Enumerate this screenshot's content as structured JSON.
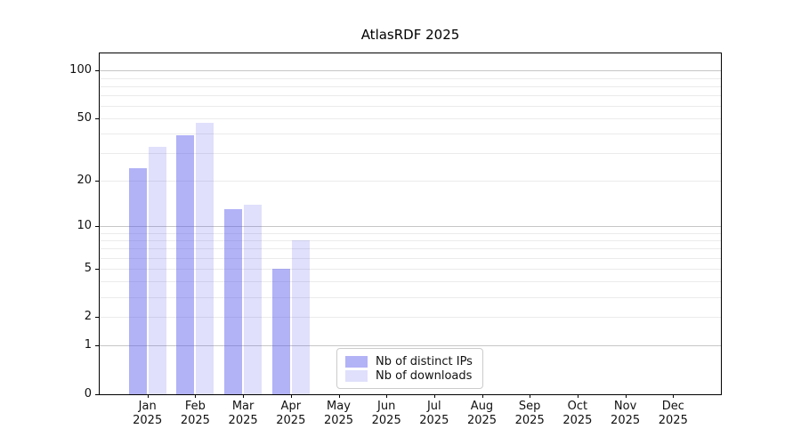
{
  "title": "AtlasRDF 2025",
  "chart_data": {
    "type": "bar",
    "scale": "log1p",
    "title": "AtlasRDF 2025",
    "categories": [
      "Jan",
      "Feb",
      "Mar",
      "Apr",
      "May",
      "Jun",
      "Jul",
      "Aug",
      "Sep",
      "Oct",
      "Nov",
      "Dec"
    ],
    "category_year": "2025",
    "series": [
      {
        "name": "Nb of distinct IPs",
        "color": "rgba(85,85,238,0.45)",
        "values": [
          24,
          39,
          13,
          5,
          0,
          0,
          0,
          0,
          0,
          0,
          0,
          0
        ]
      },
      {
        "name": "Nb of downloads",
        "color": "rgba(85,85,238,0.18)",
        "values": [
          33,
          47,
          14,
          8,
          0,
          0,
          0,
          0,
          0,
          0,
          0,
          0
        ]
      }
    ],
    "yticks": [
      0,
      1,
      2,
      5,
      10,
      20,
      50,
      100
    ],
    "ylim": [
      0,
      128
    ],
    "major_gridlines": [
      1,
      10,
      100
    ],
    "minor_gridlines": [
      2,
      3,
      4,
      5,
      6,
      7,
      8,
      9,
      20,
      30,
      40,
      50,
      60,
      70,
      80,
      90
    ],
    "grid_color_major": "#c6c6c6",
    "grid_color_minor": "#ebebeb",
    "legend_position": "lower center",
    "xlabel": "",
    "ylabel": ""
  },
  "legend": {
    "items": [
      "Nb of distinct IPs",
      "Nb of downloads"
    ]
  }
}
